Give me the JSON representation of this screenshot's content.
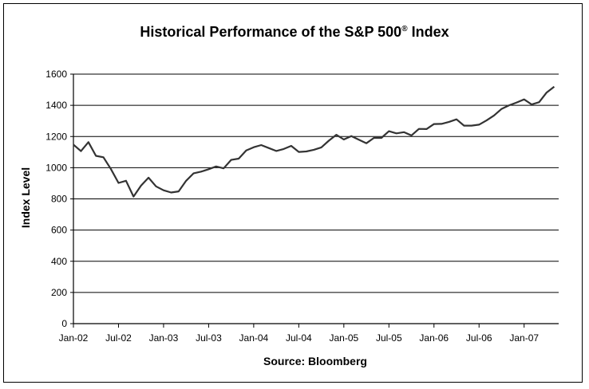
{
  "chart_data": {
    "type": "line",
    "title": "Historical Performance of the S&P 500",
    "title_superscript": "®",
    "title_suffix": " Index",
    "ylabel": "Index Level",
    "xlabel": "Source: Bloomberg",
    "ylim": [
      0,
      1600
    ],
    "y_ticks": [
      0,
      200,
      400,
      600,
      800,
      1000,
      1200,
      1400,
      1600
    ],
    "x_tick_labels": [
      "Jan-02",
      "Jul-02",
      "Jan-03",
      "Jul-03",
      "Jan-04",
      "Jul-04",
      "Jan-05",
      "Jul-05",
      "Jan-06",
      "Jul-06",
      "Jan-07"
    ],
    "grid": true,
    "legend": "none",
    "line_color": "#333333",
    "series": [
      {
        "x": [
          "2002-01",
          "2002-02",
          "2002-03",
          "2002-04",
          "2002-05",
          "2002-06",
          "2002-07",
          "2002-08",
          "2002-09",
          "2002-10",
          "2002-11",
          "2002-12",
          "2003-01",
          "2003-02",
          "2003-03",
          "2003-04",
          "2003-05",
          "2003-06",
          "2003-07",
          "2003-08",
          "2003-09",
          "2003-10",
          "2003-11",
          "2003-12",
          "2004-01",
          "2004-02",
          "2004-03",
          "2004-04",
          "2004-05",
          "2004-06",
          "2004-07",
          "2004-08",
          "2004-09",
          "2004-10",
          "2004-11",
          "2004-12",
          "2005-01",
          "2005-02",
          "2005-03",
          "2005-04",
          "2005-05",
          "2005-06",
          "2005-07",
          "2005-08",
          "2005-09",
          "2005-10",
          "2005-11",
          "2005-12",
          "2006-01",
          "2006-02",
          "2006-03",
          "2006-04",
          "2006-05",
          "2006-06",
          "2006-07",
          "2006-08",
          "2006-09",
          "2006-10",
          "2006-11",
          "2006-12",
          "2007-01",
          "2007-02",
          "2007-03",
          "2007-04",
          "2007-05"
        ],
        "values": [
          1148,
          1106,
          1164,
          1076,
          1067,
          990,
          902,
          916,
          815,
          885,
          936,
          880,
          855,
          841,
          848,
          916,
          964,
          975,
          990,
          1008,
          996,
          1050,
          1058,
          1111,
          1131,
          1145,
          1126,
          1107,
          1120,
          1140,
          1101,
          1104,
          1115,
          1130,
          1173,
          1211,
          1181,
          1203,
          1180,
          1157,
          1191,
          1191,
          1234,
          1220,
          1228,
          1207,
          1249,
          1248,
          1280,
          1281,
          1294,
          1310,
          1270,
          1270,
          1276,
          1303,
          1335,
          1377,
          1400,
          1418,
          1438,
          1406,
          1420,
          1482,
          1520
        ]
      }
    ]
  }
}
